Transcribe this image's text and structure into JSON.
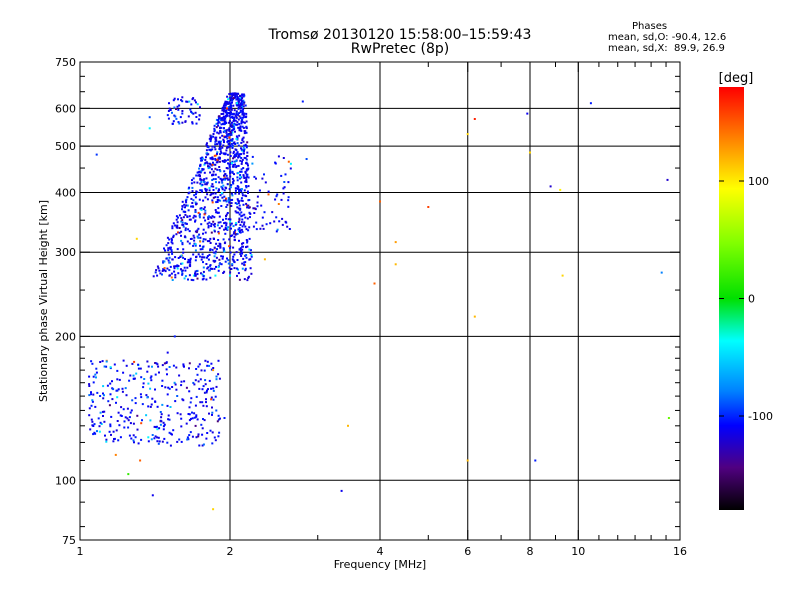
{
  "header": {
    "title_line1": "Tromsø 20130120  15:58:00–15:59:43",
    "title_line2": "RwPretec (8p)"
  },
  "stats": {
    "heading": "Phases",
    "line_o": "mean, sd,O: -90.4, 12.6",
    "line_x": "mean, sd,X:  89.9, 26.9"
  },
  "colorbar": {
    "label": "[deg]",
    "ticks": [
      {
        "value": 100,
        "label": "100"
      },
      {
        "value": 0,
        "label": "0"
      },
      {
        "value": -100,
        "label": "-100"
      }
    ],
    "range": [
      -180,
      180
    ]
  },
  "chart_data": {
    "type": "scatter",
    "xlabel": "Frequency [MHz]",
    "ylabel": "Stationary phase Virtual Height [km]",
    "xscale": "log",
    "yscale": "log",
    "xlim": [
      1,
      16
    ],
    "ylim": [
      75,
      750
    ],
    "xticks": [
      {
        "value": 1,
        "label": "1"
      },
      {
        "value": 2,
        "label": "2"
      },
      {
        "value": 4,
        "label": "4"
      },
      {
        "value": 6,
        "label": "6"
      },
      {
        "value": 8,
        "label": "8"
      },
      {
        "value": 10,
        "label": "10"
      },
      {
        "value": 16,
        "label": "16"
      }
    ],
    "xminor": [
      3,
      5,
      7,
      9,
      11,
      12,
      13,
      14,
      15
    ],
    "yticks": [
      {
        "value": 75,
        "label": "75"
      },
      {
        "value": 100,
        "label": "100"
      },
      {
        "value": 200,
        "label": "200"
      },
      {
        "value": 300,
        "label": "300"
      },
      {
        "value": 400,
        "label": "400"
      },
      {
        "value": 500,
        "label": "500"
      },
      {
        "value": 600,
        "label": "600"
      },
      {
        "value": 750,
        "label": "750"
      }
    ],
    "yminor": [
      80,
      90,
      110,
      120,
      130,
      140,
      150,
      160,
      170,
      180,
      190,
      250,
      350,
      450,
      550,
      650,
      700
    ],
    "grid_x": [
      2,
      4,
      6,
      8,
      10
    ],
    "grid_y": [
      100,
      200,
      300,
      400,
      500,
      600
    ],
    "colorscale": "rainbow phase, -180 (black) to 180 (red)",
    "scattered_points": [
      {
        "f": 1.08,
        "h": 480,
        "phase": -95
      },
      {
        "f": 1.38,
        "h": 575,
        "phase": -90
      },
      {
        "f": 1.38,
        "h": 545,
        "phase": -40
      },
      {
        "f": 1.3,
        "h": 320,
        "phase": 110
      },
      {
        "f": 1.55,
        "h": 200,
        "phase": -100
      },
      {
        "f": 1.5,
        "h": 185,
        "phase": -110
      },
      {
        "f": 1.85,
        "h": 170,
        "phase": 130
      },
      {
        "f": 1.95,
        "h": 135,
        "phase": -100
      },
      {
        "f": 1.18,
        "h": 113,
        "phase": 140
      },
      {
        "f": 1.32,
        "h": 110,
        "phase": 150
      },
      {
        "f": 1.25,
        "h": 103,
        "phase": 20
      },
      {
        "f": 1.4,
        "h": 93,
        "phase": -110
      },
      {
        "f": 1.85,
        "h": 87,
        "phase": 110
      },
      {
        "f": 2.35,
        "h": 290,
        "phase": 120
      },
      {
        "f": 2.85,
        "h": 470,
        "phase": -90
      },
      {
        "f": 2.8,
        "h": 620,
        "phase": -100
      },
      {
        "f": 3.35,
        "h": 95,
        "phase": -110
      },
      {
        "f": 3.45,
        "h": 130,
        "phase": 120
      },
      {
        "f": 3.9,
        "h": 258,
        "phase": 150
      },
      {
        "f": 4.0,
        "h": 383,
        "phase": 150
      },
      {
        "f": 4.3,
        "h": 315,
        "phase": 130
      },
      {
        "f": 4.3,
        "h": 283,
        "phase": 120
      },
      {
        "f": 5.0,
        "h": 373,
        "phase": 160
      },
      {
        "f": 6.0,
        "h": 530,
        "phase": 110
      },
      {
        "f": 6.2,
        "h": 570,
        "phase": 170
      },
      {
        "f": 6.0,
        "h": 110,
        "phase": 120
      },
      {
        "f": 6.2,
        "h": 220,
        "phase": 120
      },
      {
        "f": 7.9,
        "h": 585,
        "phase": -110
      },
      {
        "f": 8.0,
        "h": 485,
        "phase": 110
      },
      {
        "f": 8.2,
        "h": 110,
        "phase": -100
      },
      {
        "f": 8.8,
        "h": 412,
        "phase": -120
      },
      {
        "f": 9.2,
        "h": 405,
        "phase": 100
      },
      {
        "f": 9.3,
        "h": 268,
        "phase": 110
      },
      {
        "f": 10.6,
        "h": 615,
        "phase": -100
      },
      {
        "f": 14.7,
        "h": 272,
        "phase": -80
      },
      {
        "f": 15.1,
        "h": 425,
        "phase": -120
      },
      {
        "f": 15.2,
        "h": 135,
        "phase": 40
      }
    ],
    "cluster_upper": {
      "f_range": [
        1.38,
        2.85
      ],
      "h_range": [
        262,
        640
      ],
      "phase_mean": -90.4
    },
    "cluster_lower": {
      "f_range": [
        1.05,
        1.92
      ],
      "h_range": [
        118,
        175
      ],
      "phase_mean": -90.4
    }
  }
}
